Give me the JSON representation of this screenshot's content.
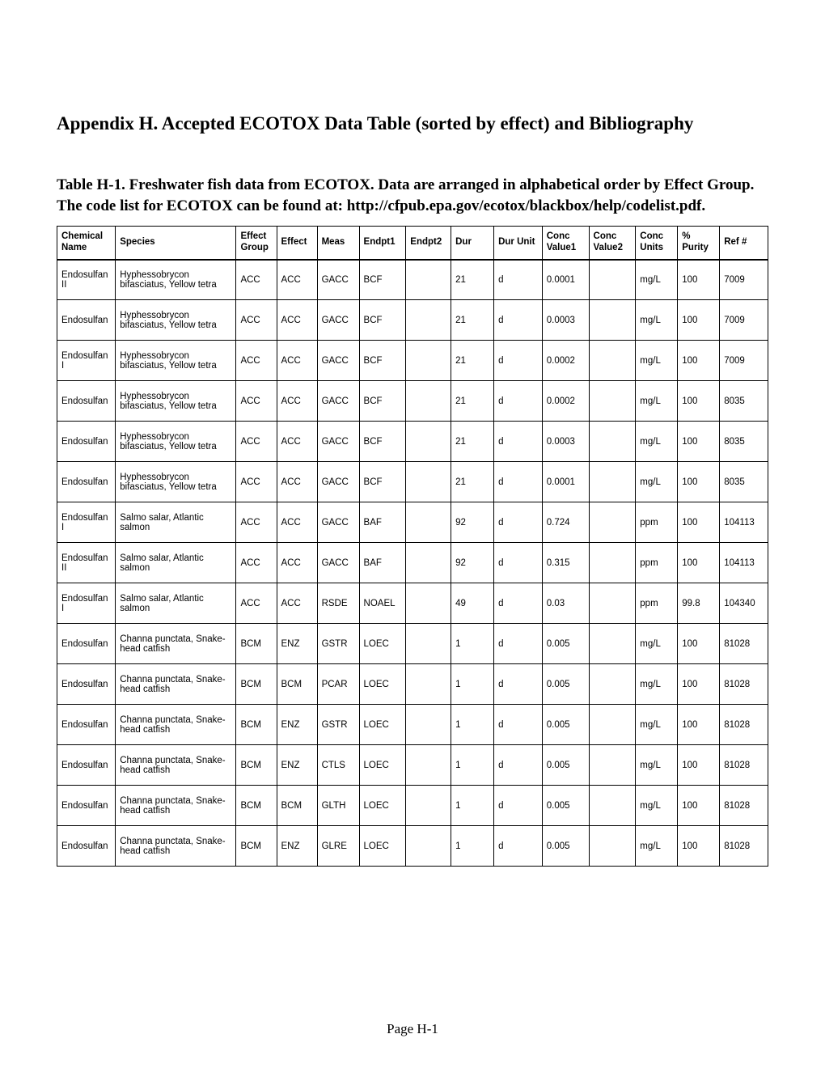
{
  "title": "Appendix H. Accepted ECOTOX Data Table (sorted by effect) and Bibliography",
  "table_caption": "Table H-1. Freshwater fish data from ECOTOX. Data are arranged in alphabetical order by Effect Group. The code list for ECOTOX can be found at: http://cfpub.epa.gov/ecotox/blackbox/help/codelist.pdf.",
  "page_number": "Page H-1",
  "columns": [
    "Chemical Name",
    "Species",
    "Effect Group",
    "Effect",
    "Meas",
    "Endpt1",
    "Endpt2",
    "Dur",
    "Dur Unit",
    "Conc Value1",
    "Conc Value2",
    "Conc Units",
    "% Purity",
    "Ref #"
  ],
  "rows": [
    [
      "Endosulfan II",
      "Hyphessobrycon bifasciatus, Yellow tetra",
      "ACC",
      "ACC",
      "GACC",
      "BCF",
      "",
      "21",
      "d",
      "0.0001",
      "",
      "mg/L",
      "100",
      "7009"
    ],
    [
      "Endosulfan",
      "Hyphessobrycon bifasciatus, Yellow tetra",
      "ACC",
      "ACC",
      "GACC",
      "BCF",
      "",
      "21",
      "d",
      "0.0003",
      "",
      "mg/L",
      "100",
      "7009"
    ],
    [
      "Endosulfan I",
      "Hyphessobrycon bifasciatus, Yellow tetra",
      "ACC",
      "ACC",
      "GACC",
      "BCF",
      "",
      "21",
      "d",
      "0.0002",
      "",
      "mg/L",
      "100",
      "7009"
    ],
    [
      "Endosulfan",
      "Hyphessobrycon bifasciatus, Yellow tetra",
      "ACC",
      "ACC",
      "GACC",
      "BCF",
      "",
      "21",
      "d",
      "0.0002",
      "",
      "mg/L",
      "100",
      "8035"
    ],
    [
      "Endosulfan",
      "Hyphessobrycon bifasciatus, Yellow tetra",
      "ACC",
      "ACC",
      "GACC",
      "BCF",
      "",
      "21",
      "d",
      "0.0003",
      "",
      "mg/L",
      "100",
      "8035"
    ],
    [
      "Endosulfan",
      "Hyphessobrycon bifasciatus, Yellow tetra",
      "ACC",
      "ACC",
      "GACC",
      "BCF",
      "",
      "21",
      "d",
      "0.0001",
      "",
      "mg/L",
      "100",
      "8035"
    ],
    [
      "Endosulfan I",
      "Salmo salar, Atlantic salmon",
      "ACC",
      "ACC",
      "GACC",
      "BAF",
      "",
      "92",
      "d",
      "0.724",
      "",
      "ppm",
      "100",
      "104113"
    ],
    [
      "Endosulfan II",
      "Salmo salar, Atlantic salmon",
      "ACC",
      "ACC",
      "GACC",
      "BAF",
      "",
      "92",
      "d",
      "0.315",
      "",
      "ppm",
      "100",
      "104113"
    ],
    [
      "Endosulfan I",
      "Salmo salar, Atlantic salmon",
      "ACC",
      "ACC",
      "RSDE",
      "NOAEL",
      "",
      "49",
      "d",
      "0.03",
      "",
      "ppm",
      "99.8",
      "104340"
    ],
    [
      "Endosulfan",
      "Channa punctata, Snake-head catfish",
      "BCM",
      "ENZ",
      "GSTR",
      "LOEC",
      "",
      "1",
      "d",
      "0.005",
      "",
      "mg/L",
      "100",
      "81028"
    ],
    [
      "Endosulfan",
      "Channa punctata, Snake-head catfish",
      "BCM",
      "BCM",
      "PCAR",
      "LOEC",
      "",
      "1",
      "d",
      "0.005",
      "",
      "mg/L",
      "100",
      "81028"
    ],
    [
      "Endosulfan",
      "Channa punctata, Snake-head catfish",
      "BCM",
      "ENZ",
      "GSTR",
      "LOEC",
      "",
      "1",
      "d",
      "0.005",
      "",
      "mg/L",
      "100",
      "81028"
    ],
    [
      "Endosulfan",
      "Channa punctata, Snake-head catfish",
      "BCM",
      "ENZ",
      "CTLS",
      "LOEC",
      "",
      "1",
      "d",
      "0.005",
      "",
      "mg/L",
      "100",
      "81028"
    ],
    [
      "Endosulfan",
      "Channa punctata, Snake-head catfish",
      "BCM",
      "BCM",
      "GLTH",
      "LOEC",
      "",
      "1",
      "d",
      "0.005",
      "",
      "mg/L",
      "100",
      "81028"
    ],
    [
      "Endosulfan",
      "Channa punctata, Snake-head catfish",
      "BCM",
      "ENZ",
      "GLRE",
      "LOEC",
      "",
      "1",
      "d",
      "0.005",
      "",
      "mg/L",
      "100",
      "81028"
    ]
  ]
}
